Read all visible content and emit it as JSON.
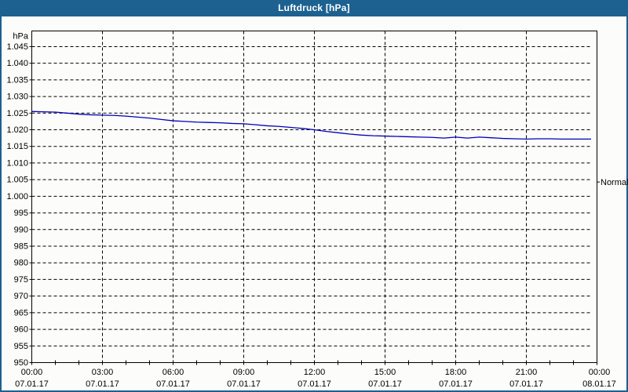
{
  "window": {
    "title": "Luftdruck [hPa]",
    "title_bar_color": "#1d6190",
    "border_color": "#1d6190",
    "background_color": "#fcfdfa"
  },
  "chart_data": {
    "type": "line",
    "title": "Luftdruck [hPa]",
    "ylabel": "hPa",
    "ylim": [
      950,
      1049.7
    ],
    "xlim_hours": [
      0,
      24
    ],
    "grid": true,
    "line_color": "#0000bb",
    "grid_color": "#000000",
    "y_ticks": [
      {
        "value": 1045,
        "label": "1.045"
      },
      {
        "value": 1040,
        "label": "1.040"
      },
      {
        "value": 1035,
        "label": "1.035"
      },
      {
        "value": 1030,
        "label": "1.030"
      },
      {
        "value": 1025,
        "label": "1.025"
      },
      {
        "value": 1020,
        "label": "1.020"
      },
      {
        "value": 1015,
        "label": "1.015"
      },
      {
        "value": 1010,
        "label": "1.010"
      },
      {
        "value": 1005,
        "label": "1.005"
      },
      {
        "value": 1000,
        "label": "1.000"
      },
      {
        "value": 995,
        "label": "995"
      },
      {
        "value": 990,
        "label": "990"
      },
      {
        "value": 985,
        "label": "985"
      },
      {
        "value": 980,
        "label": "980"
      },
      {
        "value": 975,
        "label": "975"
      },
      {
        "value": 970,
        "label": "970"
      },
      {
        "value": 965,
        "label": "965"
      },
      {
        "value": 960,
        "label": "960"
      },
      {
        "value": 955,
        "label": "955"
      },
      {
        "value": 950,
        "label": "950"
      }
    ],
    "x_ticks": [
      {
        "hour": 0,
        "time": "00:00",
        "date": "07.01.17"
      },
      {
        "hour": 3,
        "time": "03:00",
        "date": "07.01.17"
      },
      {
        "hour": 6,
        "time": "06:00",
        "date": "07.01.17"
      },
      {
        "hour": 9,
        "time": "09:00",
        "date": "07.01.17"
      },
      {
        "hour": 12,
        "time": "12:00",
        "date": "07.01.17"
      },
      {
        "hour": 15,
        "time": "15:00",
        "date": "07.01.17"
      },
      {
        "hour": 18,
        "time": "18:00",
        "date": "07.01.17"
      },
      {
        "hour": 21,
        "time": "21:00",
        "date": "07.01.17"
      },
      {
        "hour": 24,
        "time": "00:00",
        "date": "08.01.17"
      }
    ],
    "minor_tick_every_hours": 1,
    "annotations": [
      {
        "label": "Normal",
        "value": 1004.3
      }
    ],
    "series": [
      {
        "name": "Luftdruck",
        "unit": "hPa",
        "points": [
          [
            0,
            1025.5
          ],
          [
            0.5,
            1025.4
          ],
          [
            1,
            1025.3
          ],
          [
            1.5,
            1025.0
          ],
          [
            2,
            1024.7
          ],
          [
            2.5,
            1024.5
          ],
          [
            3,
            1024.4
          ],
          [
            3.5,
            1024.3
          ],
          [
            4,
            1024.1
          ],
          [
            4.5,
            1023.8
          ],
          [
            5,
            1023.5
          ],
          [
            5.5,
            1023.1
          ],
          [
            6,
            1022.7
          ],
          [
            6.5,
            1022.5
          ],
          [
            7,
            1022.3
          ],
          [
            7.5,
            1022.2
          ],
          [
            8,
            1022.1
          ],
          [
            8.5,
            1021.9
          ],
          [
            9,
            1021.8
          ],
          [
            9.5,
            1021.5
          ],
          [
            10,
            1021.2
          ],
          [
            10.5,
            1021.0
          ],
          [
            11,
            1020.7
          ],
          [
            11.5,
            1020.4
          ],
          [
            12,
            1020.0
          ],
          [
            12.5,
            1019.5
          ],
          [
            13,
            1019.1
          ],
          [
            13.5,
            1018.7
          ],
          [
            14,
            1018.4
          ],
          [
            14.5,
            1018.2
          ],
          [
            15,
            1018.1
          ],
          [
            15.5,
            1018.0
          ],
          [
            16,
            1017.9
          ],
          [
            16.5,
            1017.8
          ],
          [
            17,
            1017.7
          ],
          [
            17.5,
            1017.5
          ],
          [
            18,
            1017.8
          ],
          [
            18.5,
            1017.5
          ],
          [
            19,
            1017.8
          ],
          [
            19.5,
            1017.6
          ],
          [
            20,
            1017.4
          ],
          [
            20.5,
            1017.3
          ],
          [
            21,
            1017.2
          ],
          [
            21.5,
            1017.3
          ],
          [
            22,
            1017.3
          ],
          [
            22.5,
            1017.2
          ],
          [
            23,
            1017.2
          ],
          [
            23.75,
            1017.2
          ]
        ]
      }
    ]
  }
}
